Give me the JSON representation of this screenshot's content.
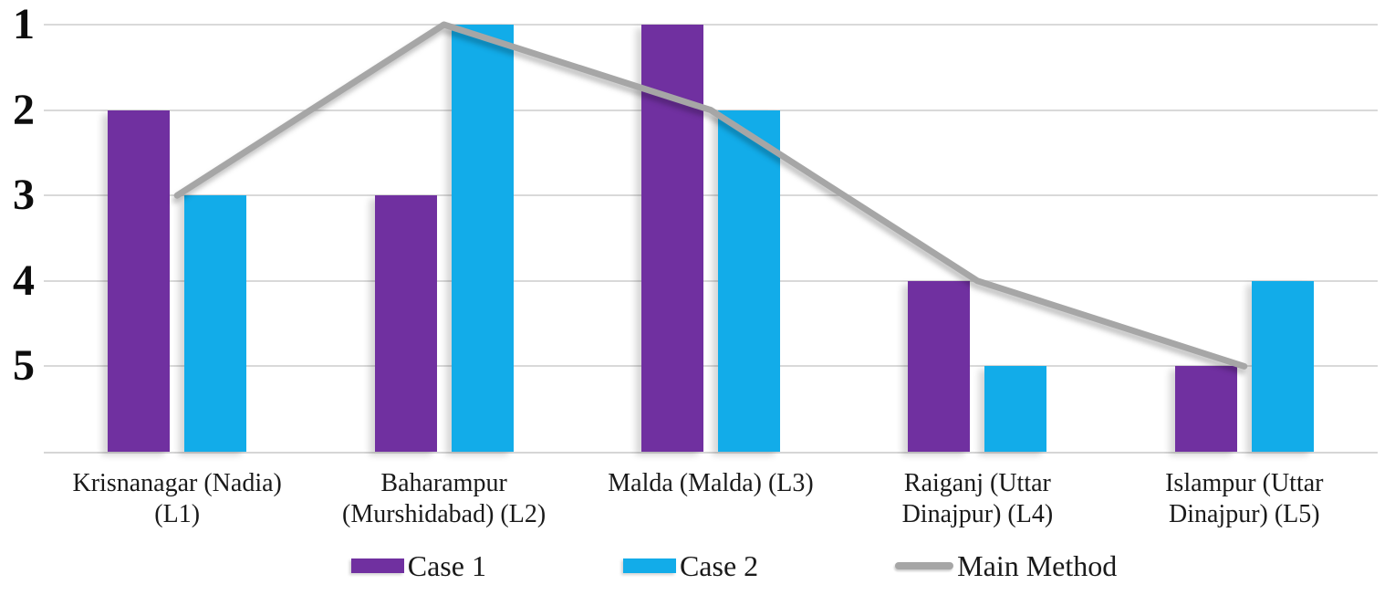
{
  "chart_data": {
    "type": "bar",
    "subtype": "grouped-bars-with-line-overlay",
    "title": "",
    "xlabel": "",
    "ylabel": "",
    "categories": [
      "Krisnanagar (Nadia) (L1)",
      "Baharampur (Murshidabad) (L2)",
      "Malda (Malda) (L3)",
      "Raiganj (Uttar Dinajpur) (L4)",
      "Islampur (Uttar Dinajpur) (L5)"
    ],
    "category_label_lines": [
      [
        "Krisnanagar (Nadia)",
        "(L1)"
      ],
      [
        "Baharampur",
        "(Murshidabad) (L2)"
      ],
      [
        "Malda (Malda) (L3)"
      ],
      [
        "Raiganj (Uttar",
        "Dinajpur) (L4)"
      ],
      [
        "Islampur (Uttar",
        "Dinajpur) (L5)"
      ]
    ],
    "series": [
      {
        "name": "Case 1",
        "type": "bar",
        "color": "#7030a0",
        "values": [
          2,
          3,
          1,
          4,
          5
        ]
      },
      {
        "name": "Case 2",
        "type": "bar",
        "color": "#12ace9",
        "values": [
          3,
          1,
          2,
          5,
          4
        ]
      },
      {
        "name": "Main Method",
        "type": "line",
        "color": "#a6a6a6",
        "values": [
          3,
          1,
          2,
          4,
          5
        ]
      }
    ],
    "y_axis": {
      "min": 1,
      "max": 6,
      "ticks": [
        1,
        2,
        3,
        4,
        5
      ],
      "inverted": true,
      "note": "rank scale: 1 (best) at top, bars rise from baseline up to their rank line"
    },
    "grid": {
      "show": true,
      "color": "#d9d9d9"
    },
    "axis_color": "#d6d6d6",
    "legend": {
      "position": "bottom",
      "entries": [
        "Case 1",
        "Case 2",
        "Main Method"
      ]
    }
  }
}
